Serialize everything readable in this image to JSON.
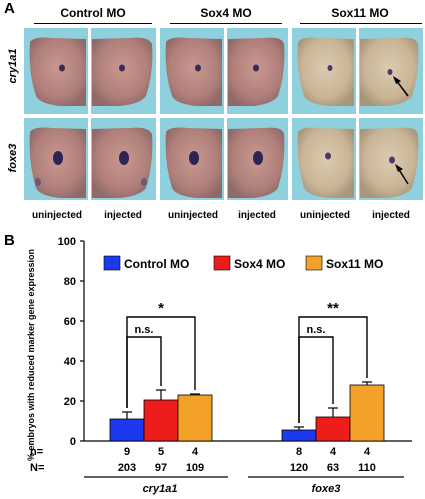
{
  "panel_a": {
    "letter": "A",
    "groups": [
      "Control MO",
      "Sox4 MO",
      "Sox11 MO"
    ],
    "rows": [
      "cry1a1",
      "foxe3"
    ],
    "sub_labels": [
      "uninjected",
      "injected"
    ]
  },
  "panel_b": {
    "letter": "B",
    "legend": {
      "placement": "top-center"
    },
    "n_row_label": "n=",
    "N_row_label": "N=",
    "sig_labels": [
      "n.s.",
      "*",
      "n.s.",
      "**"
    ]
  },
  "chart_data": {
    "type": "bar",
    "ylabel": "% embryos with reduced marker gene expression",
    "ylim": [
      0,
      100
    ],
    "yticks": [
      0,
      20,
      40,
      60,
      80,
      100
    ],
    "categories": [
      "cry1a1",
      "foxe3"
    ],
    "series": [
      {
        "name": "Control MO",
        "color": "#1d39f0",
        "values": [
          11,
          5.5
        ],
        "errors": [
          3.5,
          1.5
        ],
        "n": [
          "9",
          "8"
        ],
        "N": [
          "203",
          "120"
        ]
      },
      {
        "name": "Sox4 MO",
        "color": "#ef1c1c",
        "values": [
          20.5,
          12
        ],
        "errors": [
          5,
          4.5
        ],
        "n": [
          "5",
          "4"
        ],
        "N": [
          "97",
          "63"
        ]
      },
      {
        "name": "Sox11 MO",
        "color": "#f2a228",
        "values": [
          23,
          28
        ],
        "errors": [
          0.5,
          1.5
        ],
        "n": [
          "4",
          "4"
        ],
        "N": [
          "109",
          "110"
        ]
      }
    ],
    "grid": false
  }
}
